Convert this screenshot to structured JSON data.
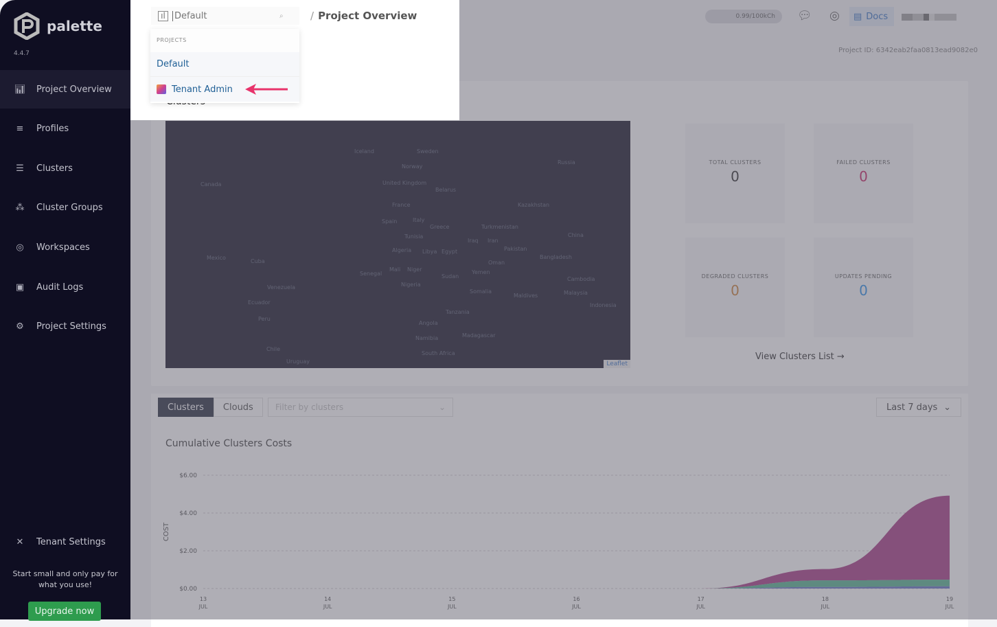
{
  "app": {
    "name": "palette",
    "version": "4.4.7"
  },
  "sidebar": {
    "items": [
      {
        "label": "Project Overview",
        "icon": "chart-icon"
      },
      {
        "label": "Profiles",
        "icon": "database-icon"
      },
      {
        "label": "Clusters",
        "icon": "list-icon"
      },
      {
        "label": "Cluster Groups",
        "icon": "nodes-icon"
      },
      {
        "label": "Workspaces",
        "icon": "target-icon"
      },
      {
        "label": "Audit Logs",
        "icon": "search-doc-icon"
      },
      {
        "label": "Project Settings",
        "icon": "gear-icon"
      }
    ],
    "tenant_settings": "Tenant Settings",
    "promo": "Start small and only pay for what you use!",
    "upgrade": "Upgrade now"
  },
  "header": {
    "search_value": "Default",
    "breadcrumb": "Project Overview",
    "credits": "0.99/100kCh",
    "docs": "Docs",
    "project_id": "Project ID: 6342eab2faa0813ead9082e0"
  },
  "dropdown": {
    "heading": "PROJECTS",
    "items": [
      "Default",
      "Tenant Admin"
    ]
  },
  "clusters_panel": {
    "title": "Clusters",
    "leaflet": "Leaflet",
    "view_list": "View Clusters List",
    "map_labels": [
      "Iceland",
      "Sweden",
      "Norway",
      "Russia",
      "Canada",
      "United Kingdom",
      "Belarus",
      "France",
      "Kazakhstan",
      "Spain",
      "Italy",
      "Greece",
      "Turkmenistan",
      "China",
      "Tunisia",
      "Iraq",
      "Iran",
      "Pakistan",
      "Mexico",
      "Cuba",
      "Algeria",
      "Libya",
      "Egypt",
      "Bangladesh",
      "Oman",
      "Mali",
      "Niger",
      "Senegal",
      "Sudan",
      "Yemen",
      "Nigeria",
      "Cambodia",
      "Venezuela",
      "Somalia",
      "Maldives",
      "Malaysia",
      "Ecuador",
      "Indonesia",
      "Peru",
      "Tanzania",
      "Angola",
      "Madagascar",
      "Namibia",
      "Chile",
      "South Africa",
      "Uruguay"
    ],
    "stats": [
      {
        "label": "TOTAL CLUSTERS",
        "value": "0",
        "color": "#222222"
      },
      {
        "label": "FAILED CLUSTERS",
        "value": "0",
        "color": "#c2185b"
      },
      {
        "label": "DEGRADED CLUSTERS",
        "value": "0",
        "color": "#c77a2e"
      },
      {
        "label": "UPDATES PENDING",
        "value": "0",
        "color": "#1e88e5"
      }
    ]
  },
  "costs": {
    "tabs": [
      "Clusters",
      "Clouds"
    ],
    "filter_placeholder": "Filter by clusters",
    "range": "Last 7 days"
  },
  "chart_data": {
    "type": "area",
    "stacked": true,
    "title": "Cumulative Clusters Costs",
    "ylabel": "COST",
    "ylim": [
      0,
      6
    ],
    "yticks": [
      "$0.00",
      "$2.00",
      "$4.00",
      "$6.00"
    ],
    "x": [
      "13 JUL",
      "14 JUL",
      "15 JUL",
      "16 JUL",
      "17 JUL",
      "18 JUL",
      "19 JUL"
    ],
    "grid": true,
    "series": [
      {
        "color": "#5c6bc0",
        "values": [
          0,
          0,
          0,
          0,
          0,
          0.08,
          0.12
        ]
      },
      {
        "color": "#4caf8a",
        "values": [
          0,
          0,
          0,
          0,
          0,
          0.35,
          0.35
        ]
      },
      {
        "color": "#a3307e",
        "values": [
          0,
          0,
          0,
          0,
          0,
          0.6,
          4.45
        ]
      }
    ]
  }
}
